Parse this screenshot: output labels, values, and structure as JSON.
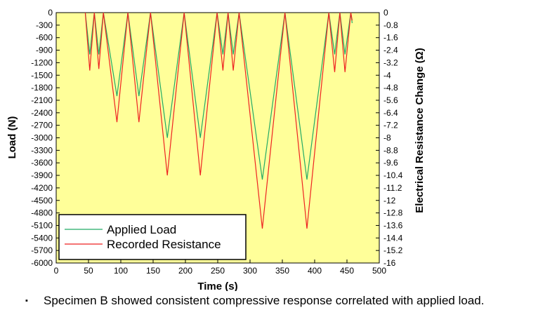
{
  "chart_data": {
    "type": "line",
    "xlabel": "Time (s)",
    "ylabel": "Load (N)",
    "y2label": "Electrical Resistance Change (Ω)",
    "xlim": [
      0,
      500
    ],
    "ylim": [
      -6000,
      0
    ],
    "y2lim": [
      -16,
      0
    ],
    "x_ticks": [
      0,
      50,
      100,
      150,
      200,
      250,
      300,
      350,
      400,
      450,
      500
    ],
    "y_ticks": [
      0,
      -300,
      -600,
      -900,
      -1200,
      -1500,
      -1800,
      -2100,
      -2400,
      -2700,
      -3000,
      -3300,
      -3600,
      -3900,
      -4200,
      -4500,
      -4800,
      -5100,
      -5400,
      -5700,
      -6000
    ],
    "y2_ticks": [
      0,
      -0.8,
      -1.6,
      -2.4,
      -3.2,
      -4,
      -4.8,
      -5.6,
      -6.4,
      -7.2,
      -8,
      -8.8,
      -9.6,
      -10.4,
      -11.2,
      -12,
      -12.8,
      -13.6,
      -14.4,
      -15.2,
      -16
    ],
    "grid": false,
    "legend_position": "bottom-left",
    "background": "#ffff99",
    "series": [
      {
        "name": "Applied Load",
        "axis": "left",
        "color": "#22aa66",
        "points": [
          [
            45,
            0
          ],
          [
            52,
            -1000
          ],
          [
            59,
            0
          ],
          [
            66,
            -1000
          ],
          [
            73,
            0
          ],
          [
            94,
            -2000
          ],
          [
            111,
            0
          ],
          [
            128,
            -2000
          ],
          [
            146,
            0
          ],
          [
            172,
            -3000
          ],
          [
            198,
            0
          ],
          [
            223,
            -3000
          ],
          [
            249,
            0
          ],
          [
            258,
            -1000
          ],
          [
            266,
            0
          ],
          [
            274,
            -1000
          ],
          [
            283,
            0
          ],
          [
            319,
            -4000
          ],
          [
            354,
            0
          ],
          [
            388,
            -4000
          ],
          [
            422,
            0
          ],
          [
            431,
            -1000
          ],
          [
            439,
            0
          ],
          [
            447,
            -1000
          ],
          [
            456,
            0
          ],
          [
            458,
            -250
          ]
        ]
      },
      {
        "name": "Recorded Resistance",
        "axis": "right",
        "color": "#ee2222",
        "points": [
          [
            45,
            0
          ],
          [
            52,
            -3.7
          ],
          [
            59,
            0
          ],
          [
            66,
            -3.6
          ],
          [
            73,
            0
          ],
          [
            94,
            -7.0
          ],
          [
            111,
            0
          ],
          [
            128,
            -7.0
          ],
          [
            146,
            0
          ],
          [
            172,
            -10.4
          ],
          [
            198,
            0
          ],
          [
            223,
            -10.4
          ],
          [
            249,
            0
          ],
          [
            258,
            -3.7
          ],
          [
            266,
            0
          ],
          [
            274,
            -3.7
          ],
          [
            283,
            0
          ],
          [
            319,
            -13.8
          ],
          [
            354,
            0
          ],
          [
            388,
            -13.8
          ],
          [
            422,
            0
          ],
          [
            431,
            -3.8
          ],
          [
            439,
            0
          ],
          [
            447,
            -3.8
          ],
          [
            456,
            0
          ],
          [
            458,
            -0.5
          ]
        ]
      }
    ]
  },
  "caption": {
    "bullet": "▪",
    "text": "Specimen B showed consistent compressive response correlated with applied load."
  }
}
